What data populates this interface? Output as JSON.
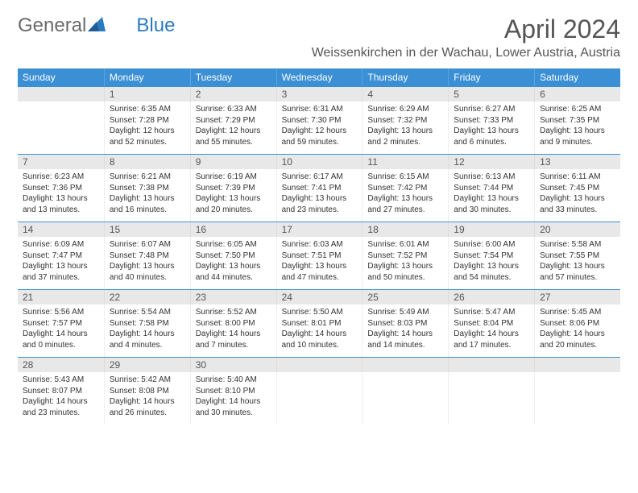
{
  "brand": {
    "part1": "General",
    "part2": "Blue"
  },
  "title": "April 2024",
  "location": "Weissenkirchen in der Wachau, Lower Austria, Austria",
  "colors": {
    "header_bg": "#3b8fd4",
    "header_text": "#ffffff",
    "daynum_bg": "#e8e8e8",
    "border_top": "#3b8fd4",
    "text": "#333333",
    "logo_gray": "#6b6b6b",
    "logo_blue": "#2b7bbf"
  },
  "weekdays": [
    "Sunday",
    "Monday",
    "Tuesday",
    "Wednesday",
    "Thursday",
    "Friday",
    "Saturday"
  ],
  "weeks": [
    [
      {
        "num": "",
        "sunrise": "",
        "sunset": "",
        "daylight": ""
      },
      {
        "num": "1",
        "sunrise": "Sunrise: 6:35 AM",
        "sunset": "Sunset: 7:28 PM",
        "daylight": "Daylight: 12 hours and 52 minutes."
      },
      {
        "num": "2",
        "sunrise": "Sunrise: 6:33 AM",
        "sunset": "Sunset: 7:29 PM",
        "daylight": "Daylight: 12 hours and 55 minutes."
      },
      {
        "num": "3",
        "sunrise": "Sunrise: 6:31 AM",
        "sunset": "Sunset: 7:30 PM",
        "daylight": "Daylight: 12 hours and 59 minutes."
      },
      {
        "num": "4",
        "sunrise": "Sunrise: 6:29 AM",
        "sunset": "Sunset: 7:32 PM",
        "daylight": "Daylight: 13 hours and 2 minutes."
      },
      {
        "num": "5",
        "sunrise": "Sunrise: 6:27 AM",
        "sunset": "Sunset: 7:33 PM",
        "daylight": "Daylight: 13 hours and 6 minutes."
      },
      {
        "num": "6",
        "sunrise": "Sunrise: 6:25 AM",
        "sunset": "Sunset: 7:35 PM",
        "daylight": "Daylight: 13 hours and 9 minutes."
      }
    ],
    [
      {
        "num": "7",
        "sunrise": "Sunrise: 6:23 AM",
        "sunset": "Sunset: 7:36 PM",
        "daylight": "Daylight: 13 hours and 13 minutes."
      },
      {
        "num": "8",
        "sunrise": "Sunrise: 6:21 AM",
        "sunset": "Sunset: 7:38 PM",
        "daylight": "Daylight: 13 hours and 16 minutes."
      },
      {
        "num": "9",
        "sunrise": "Sunrise: 6:19 AM",
        "sunset": "Sunset: 7:39 PM",
        "daylight": "Daylight: 13 hours and 20 minutes."
      },
      {
        "num": "10",
        "sunrise": "Sunrise: 6:17 AM",
        "sunset": "Sunset: 7:41 PM",
        "daylight": "Daylight: 13 hours and 23 minutes."
      },
      {
        "num": "11",
        "sunrise": "Sunrise: 6:15 AM",
        "sunset": "Sunset: 7:42 PM",
        "daylight": "Daylight: 13 hours and 27 minutes."
      },
      {
        "num": "12",
        "sunrise": "Sunrise: 6:13 AM",
        "sunset": "Sunset: 7:44 PM",
        "daylight": "Daylight: 13 hours and 30 minutes."
      },
      {
        "num": "13",
        "sunrise": "Sunrise: 6:11 AM",
        "sunset": "Sunset: 7:45 PM",
        "daylight": "Daylight: 13 hours and 33 minutes."
      }
    ],
    [
      {
        "num": "14",
        "sunrise": "Sunrise: 6:09 AM",
        "sunset": "Sunset: 7:47 PM",
        "daylight": "Daylight: 13 hours and 37 minutes."
      },
      {
        "num": "15",
        "sunrise": "Sunrise: 6:07 AM",
        "sunset": "Sunset: 7:48 PM",
        "daylight": "Daylight: 13 hours and 40 minutes."
      },
      {
        "num": "16",
        "sunrise": "Sunrise: 6:05 AM",
        "sunset": "Sunset: 7:50 PM",
        "daylight": "Daylight: 13 hours and 44 minutes."
      },
      {
        "num": "17",
        "sunrise": "Sunrise: 6:03 AM",
        "sunset": "Sunset: 7:51 PM",
        "daylight": "Daylight: 13 hours and 47 minutes."
      },
      {
        "num": "18",
        "sunrise": "Sunrise: 6:01 AM",
        "sunset": "Sunset: 7:52 PM",
        "daylight": "Daylight: 13 hours and 50 minutes."
      },
      {
        "num": "19",
        "sunrise": "Sunrise: 6:00 AM",
        "sunset": "Sunset: 7:54 PM",
        "daylight": "Daylight: 13 hours and 54 minutes."
      },
      {
        "num": "20",
        "sunrise": "Sunrise: 5:58 AM",
        "sunset": "Sunset: 7:55 PM",
        "daylight": "Daylight: 13 hours and 57 minutes."
      }
    ],
    [
      {
        "num": "21",
        "sunrise": "Sunrise: 5:56 AM",
        "sunset": "Sunset: 7:57 PM",
        "daylight": "Daylight: 14 hours and 0 minutes."
      },
      {
        "num": "22",
        "sunrise": "Sunrise: 5:54 AM",
        "sunset": "Sunset: 7:58 PM",
        "daylight": "Daylight: 14 hours and 4 minutes."
      },
      {
        "num": "23",
        "sunrise": "Sunrise: 5:52 AM",
        "sunset": "Sunset: 8:00 PM",
        "daylight": "Daylight: 14 hours and 7 minutes."
      },
      {
        "num": "24",
        "sunrise": "Sunrise: 5:50 AM",
        "sunset": "Sunset: 8:01 PM",
        "daylight": "Daylight: 14 hours and 10 minutes."
      },
      {
        "num": "25",
        "sunrise": "Sunrise: 5:49 AM",
        "sunset": "Sunset: 8:03 PM",
        "daylight": "Daylight: 14 hours and 14 minutes."
      },
      {
        "num": "26",
        "sunrise": "Sunrise: 5:47 AM",
        "sunset": "Sunset: 8:04 PM",
        "daylight": "Daylight: 14 hours and 17 minutes."
      },
      {
        "num": "27",
        "sunrise": "Sunrise: 5:45 AM",
        "sunset": "Sunset: 8:06 PM",
        "daylight": "Daylight: 14 hours and 20 minutes."
      }
    ],
    [
      {
        "num": "28",
        "sunrise": "Sunrise: 5:43 AM",
        "sunset": "Sunset: 8:07 PM",
        "daylight": "Daylight: 14 hours and 23 minutes."
      },
      {
        "num": "29",
        "sunrise": "Sunrise: 5:42 AM",
        "sunset": "Sunset: 8:08 PM",
        "daylight": "Daylight: 14 hours and 26 minutes."
      },
      {
        "num": "30",
        "sunrise": "Sunrise: 5:40 AM",
        "sunset": "Sunset: 8:10 PM",
        "daylight": "Daylight: 14 hours and 30 minutes."
      },
      {
        "num": "",
        "sunrise": "",
        "sunset": "",
        "daylight": ""
      },
      {
        "num": "",
        "sunrise": "",
        "sunset": "",
        "daylight": ""
      },
      {
        "num": "",
        "sunrise": "",
        "sunset": "",
        "daylight": ""
      },
      {
        "num": "",
        "sunrise": "",
        "sunset": "",
        "daylight": ""
      }
    ]
  ]
}
